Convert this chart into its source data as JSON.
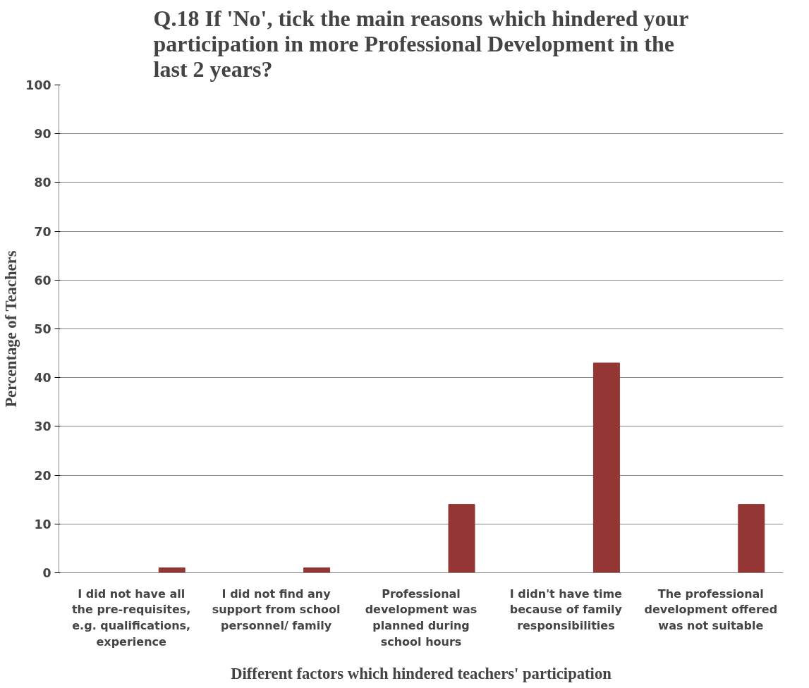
{
  "chart_data": {
    "type": "bar",
    "title": "Q.18 If 'No', tick the main reasons which hindered your participation in more Professional Development in the last 2 years?",
    "xlabel": "Different factors which hindered teachers' participation",
    "ylabel": "Percentage of Teachers",
    "categories": [
      "I did not have all the pre-requisites, e.g. qualifications, experience",
      "I did not find any support from school personnel/ family",
      "Professional development was planned during school hours",
      "I didn't have time because of family responsibilities",
      "The professional development offered was not suitable"
    ],
    "values": [
      1,
      1,
      14,
      43,
      14
    ],
    "color": "#943634",
    "ylim": [
      0,
      100
    ],
    "yticks": [
      0,
      10,
      20,
      30,
      40,
      50,
      60,
      70,
      80,
      90,
      100
    ],
    "grid": "y"
  }
}
